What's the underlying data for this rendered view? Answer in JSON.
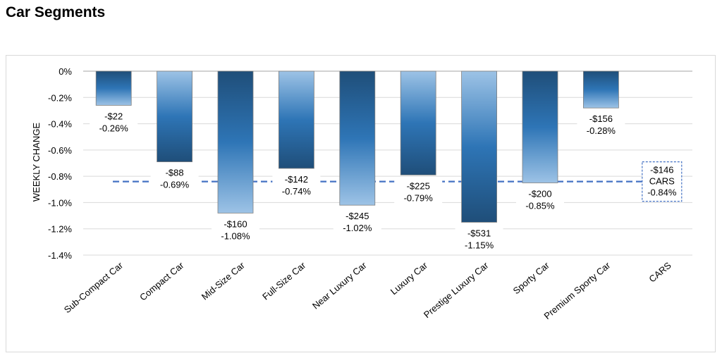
{
  "page": {
    "title": "Car Segments"
  },
  "chart_data": {
    "type": "bar",
    "title": "",
    "xlabel": "",
    "ylabel": "WEEKLY CHANGE",
    "ylim": [
      -1.4,
      0
    ],
    "y_ticks": [
      "0%",
      "-0.2%",
      "-0.4%",
      "-0.6%",
      "-0.8%",
      "-1.0%",
      "-1.2%",
      "-1.4%"
    ],
    "grid": true,
    "categories": [
      "Sub-Compact Car",
      "Compact Car",
      "Mid-Size Car",
      "Full-Size Car",
      "Near Luxury Car",
      "Luxury Car",
      "Prestige Luxury Car",
      "Sporty Car",
      "Premium Sporty Car",
      "CARS"
    ],
    "values": [
      -0.26,
      -0.69,
      -1.08,
      -0.74,
      -1.02,
      -0.79,
      -1.15,
      -0.85,
      -0.28,
      -0.84
    ],
    "dollar_labels": [
      "-$22",
      "-$88",
      "-$160",
      "-$142",
      "-$245",
      "-$225",
      "-$531",
      "-$200",
      "-$156",
      "-$146"
    ],
    "percent_labels": [
      "-0.26%",
      "-0.69%",
      "-1.08%",
      "-0.74%",
      "-1.02%",
      "-0.79%",
      "-1.15%",
      "-0.85%",
      "-0.28%",
      "-0.84%"
    ],
    "reference_line": {
      "value": -0.84,
      "label": "CARS"
    },
    "colors": {
      "bar_light": "#9dc3e6",
      "bar_mid": "#2e75b6",
      "bar_dark": "#1f4e79",
      "reference": "#4472c4",
      "grid": "#d9d9d9"
    }
  }
}
